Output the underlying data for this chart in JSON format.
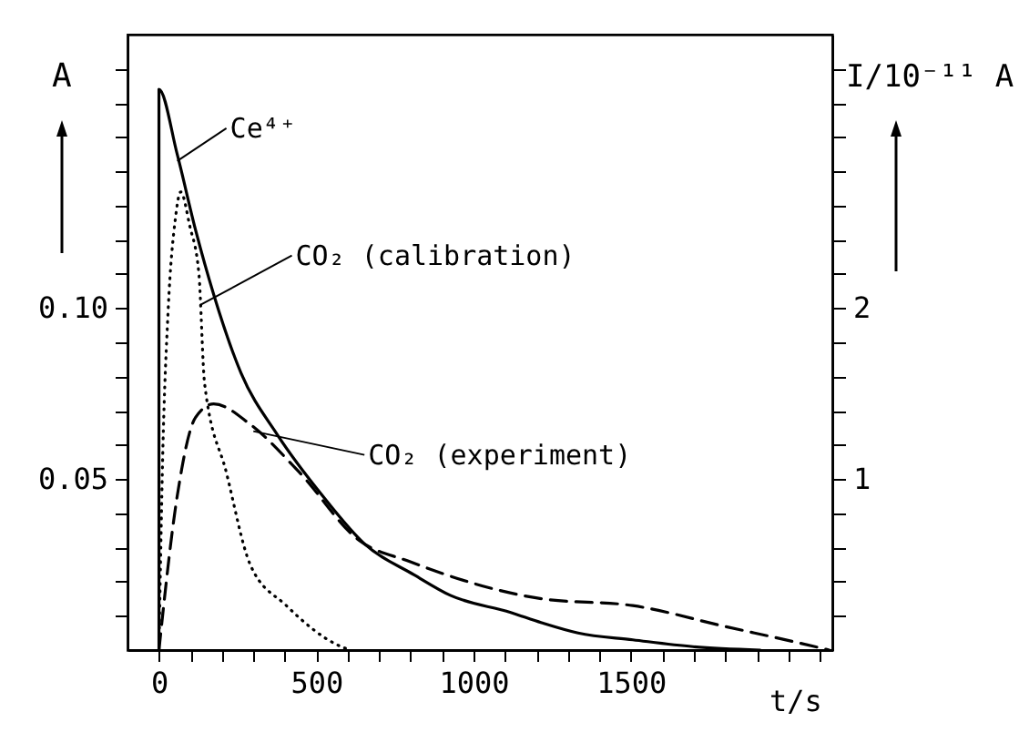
{
  "chart_data": {
    "type": "line",
    "xlabel": "t/s",
    "ylabel": "A",
    "y2label": "I/10⁻¹¹ A",
    "xlim": [
      -100,
      2140
    ],
    "ylim": [
      0,
      0.18
    ],
    "y2lim": [
      0,
      3.6
    ],
    "xticks": [
      0,
      {
        "value": 100,
        "label": null
      },
      {
        "value": 200,
        "label": null
      },
      {
        "value": 300,
        "label": null
      },
      {
        "value": 400,
        "label": null
      },
      500,
      {
        "value": 600,
        "label": null
      },
      {
        "value": 700,
        "label": null
      },
      {
        "value": 800,
        "label": null
      },
      {
        "value": 900,
        "label": null
      },
      1000,
      {
        "value": 1100,
        "label": null
      },
      {
        "value": 1200,
        "label": null
      },
      {
        "value": 1300,
        "label": null
      },
      {
        "value": 1400,
        "label": null
      },
      1500,
      {
        "value": 1600,
        "label": null
      },
      {
        "value": 1700,
        "label": null
      },
      {
        "value": 1800,
        "label": null
      },
      {
        "value": 1900,
        "label": null
      },
      {
        "value": 2000,
        "label": null
      },
      {
        "value": 2100,
        "label": null
      }
    ],
    "yticks": [
      {
        "value": 0.01,
        "label": null
      },
      {
        "value": 0.02,
        "label": null
      },
      {
        "value": 0.03,
        "label": null
      },
      {
        "value": 0.04,
        "label": null
      },
      {
        "value": 0.05,
        "label": "0.05"
      },
      {
        "value": 0.06,
        "label": null
      },
      {
        "value": 0.07,
        "label": null
      },
      {
        "value": 0.08,
        "label": null
      },
      {
        "value": 0.09,
        "label": null
      },
      {
        "value": 0.1,
        "label": "0.10"
      },
      {
        "value": 0.11,
        "label": null
      },
      {
        "value": 0.12,
        "label": null
      },
      {
        "value": 0.13,
        "label": null
      },
      {
        "value": 0.14,
        "label": null
      },
      {
        "value": 0.15,
        "label": null
      },
      {
        "value": 0.16,
        "label": null
      },
      {
        "value": 0.17,
        "label": null
      }
    ],
    "y2ticks": [
      {
        "value": 0.2,
        "label": null
      },
      {
        "value": 0.4,
        "label": null
      },
      {
        "value": 0.6,
        "label": null
      },
      {
        "value": 0.8,
        "label": null
      },
      1,
      {
        "value": 1.2,
        "label": null
      },
      {
        "value": 1.4,
        "label": null
      },
      {
        "value": 1.6,
        "label": null
      },
      {
        "value": 1.8,
        "label": null
      },
      2,
      {
        "value": 2.2,
        "label": null
      },
      {
        "value": 2.4,
        "label": null
      },
      {
        "value": 2.6,
        "label": null
      },
      {
        "value": 2.8,
        "label": null
      },
      {
        "value": 3,
        "label": null
      },
      {
        "value": 3.2,
        "label": null
      },
      {
        "value": 3.4,
        "label": null
      }
    ],
    "series": [
      {
        "color": "#000000",
        "line_style": "solid",
        "x": [
          0,
          0,
          58,
          116,
          174,
          261,
          376,
          521,
          654,
          811,
          926,
          1118,
          1216,
          1332,
          1506,
          1697,
          1911
        ],
        "values": [
          0,
          0.164,
          0.145,
          0.123,
          0.104,
          0.081,
          0.063,
          0.045,
          0.031,
          0.022,
          0.016,
          0.011,
          0.008,
          0.005,
          0.003,
          0.001,
          0
        ]
      },
      {
        "color": "#000000",
        "line_style": "dotted",
        "axis": "y2",
        "x": [
          0,
          12,
          29,
          52,
          69,
          98,
          127,
          145,
          214,
          290,
          405,
          579,
          608
        ],
        "values": [
          0,
          1.14,
          1.98,
          2.52,
          2.68,
          2.48,
          2.2,
          1.56,
          1.04,
          0.5,
          0.26,
          0.02,
          0
        ]
      },
      {
        "color": "#000000",
        "line_style": "dashed",
        "axis": "y2",
        "x": [
          0,
          58,
          116,
          174,
          290,
          446,
          637,
          793,
          1216,
          1506,
          1795,
          2085,
          2130
        ],
        "values": [
          0,
          0.9,
          1.36,
          1.44,
          1.32,
          1.04,
          0.64,
          0.52,
          0.3,
          0.26,
          0.14,
          0.02,
          0
        ]
      }
    ],
    "annotations": [
      {
        "text": "Ce⁴⁺",
        "x": 58,
        "y": 0.143
      },
      {
        "text": "CO₂ (calibration)",
        "x": 133,
        "y": 0.101
      },
      {
        "text": "CO₂ (experiment)",
        "x": 300,
        "y": 0.064
      }
    ],
    "grid": false,
    "legend": false,
    "marker": "none"
  }
}
